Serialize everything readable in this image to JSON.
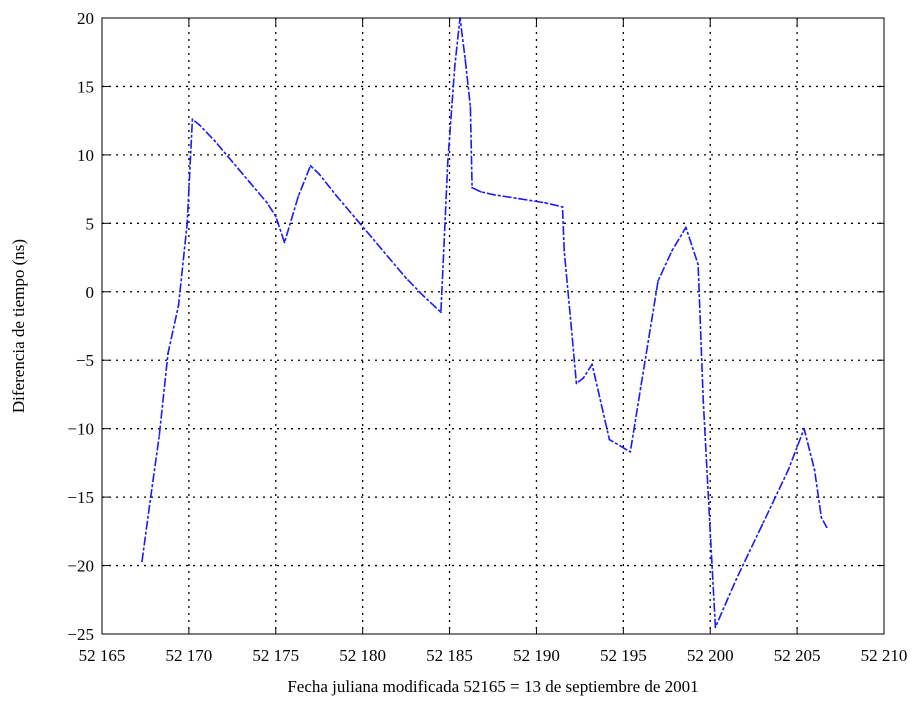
{
  "chart_data": {
    "type": "line",
    "title": "",
    "xlabel": "Fecha juliana modificada 52165 = 13 de septiembre de 2001",
    "ylabel": "Diferencia de tiempo (ns)",
    "xlim": [
      52165,
      52210
    ],
    "ylim": [
      -25,
      20
    ],
    "x_ticks": [
      52165,
      52170,
      52175,
      52180,
      52185,
      52190,
      52195,
      52200,
      52205,
      52210
    ],
    "x_tick_labels": [
      "52 165",
      "52 170",
      "52 175",
      "52 180",
      "52 185",
      "52 190",
      "52 195",
      "52 200",
      "52 205",
      "52 210"
    ],
    "y_ticks": [
      -25,
      -20,
      -15,
      -10,
      -5,
      0,
      5,
      10,
      15,
      20
    ],
    "y_tick_labels": [
      "−25",
      "−20",
      "−15",
      "−10",
      "−5",
      "0",
      "5",
      "10",
      "15",
      "20"
    ],
    "grid": true,
    "grid_style": "dotted",
    "line_color": "#1a1aff",
    "series": [
      {
        "x": [
          52167.3,
          52167.8,
          52168.3,
          52168.8,
          52169.4,
          52169.9,
          52170.2,
          52170.6,
          52171.5,
          52172.5,
          52173.5,
          52174.5,
          52175.0,
          52175.5,
          52176.3,
          52177.0,
          52177.5,
          52178.5,
          52179.5,
          52180.5,
          52181.5,
          52182.5,
          52183.5,
          52184.5,
          52184.9,
          52185.3,
          52185.6,
          52185.9,
          52186.2,
          52186.3,
          52186.8,
          52187.5,
          52189.0,
          52190.5,
          52191.5,
          52191.6,
          52192.0,
          52192.3,
          52192.7,
          52193.2,
          52194.2,
          52195.4,
          52196.0,
          52197.0,
          52197.8,
          52198.6,
          52199.3,
          52199.6,
          52200.0,
          52200.3,
          52201.5,
          52203.0,
          52204.5,
          52205.4,
          52206.0,
          52206.4,
          52206.7
        ],
        "y": [
          -19.7,
          -15.0,
          -10.5,
          -4.5,
          -1.0,
          5.0,
          12.6,
          12.2,
          11.0,
          9.5,
          8.0,
          6.5,
          5.5,
          3.6,
          7.0,
          9.2,
          8.6,
          7.0,
          5.5,
          4.0,
          2.5,
          1.0,
          -0.3,
          -1.5,
          9.5,
          16.5,
          20.0,
          17.0,
          13.5,
          7.6,
          7.3,
          7.1,
          6.8,
          6.5,
          6.2,
          3.0,
          -2.5,
          -6.7,
          -6.3,
          -5.3,
          -10.8,
          -11.7,
          -7.0,
          0.8,
          3.0,
          4.7,
          2.0,
          -8.0,
          -17.5,
          -24.5,
          -21.0,
          -17.0,
          -13.0,
          -10.0,
          -13.0,
          -16.5,
          -17.2
        ]
      }
    ]
  }
}
